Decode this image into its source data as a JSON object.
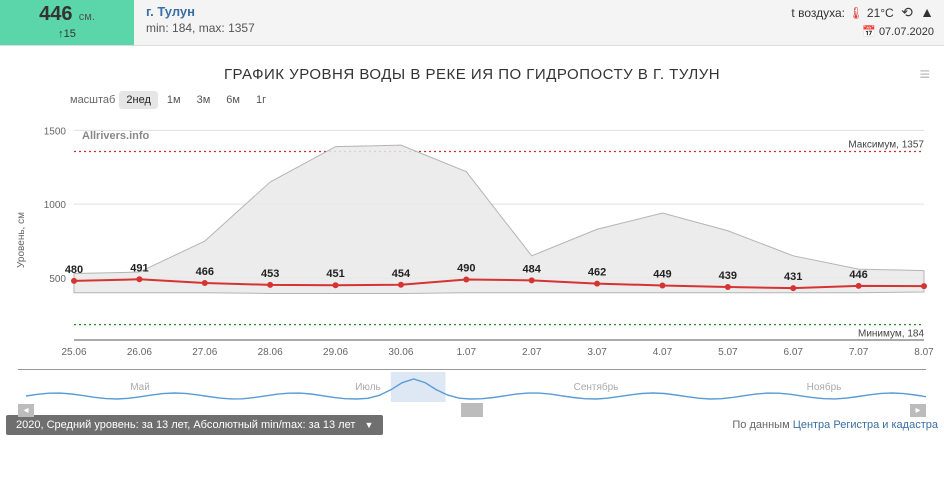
{
  "header": {
    "level_value": "446",
    "level_unit": "см.",
    "level_delta": "↑15",
    "city": "г. Тулун",
    "min_label": "min:",
    "min_value": "184,",
    "max_label": "max:",
    "max_value": "1357",
    "temp_label": "t воздуха:",
    "temp_value": "21°C",
    "date": "07.07.2020"
  },
  "chart": {
    "title": "ГРАФИК УРОВНЯ ВОДЫ В РЕКЕ ИЯ ПО ГИДРОПОСТУ В Г. ТУЛУН",
    "scale_label": "масштаб",
    "scale_options": [
      "2нед",
      "1м",
      "3м",
      "6м",
      "1г"
    ],
    "scale_active": 0,
    "watermark": "Allrivers.info",
    "y_label": "Уровень, см",
    "y_ticks": [
      500,
      1000,
      1500
    ],
    "ylim": [
      100,
      1550
    ],
    "x_labels": [
      "25.06",
      "26.06",
      "27.06",
      "28.06",
      "29.06",
      "30.06",
      "1.07",
      "2.07",
      "3.07",
      "4.07",
      "5.07",
      "6.07",
      "7.07",
      "8.07"
    ],
    "max_line": {
      "label": "Максимум, 1357",
      "value": 1357,
      "color": "#c03030"
    },
    "min_line": {
      "label": "Минимум, 184",
      "value": 184,
      "color": "#2a8a2a"
    },
    "envelope_top": [
      530,
      540,
      750,
      1150,
      1390,
      1400,
      1220,
      650,
      830,
      940,
      820,
      650,
      560,
      550
    ],
    "envelope_bottom": [
      400,
      400,
      400,
      395,
      395,
      395,
      400,
      400,
      400,
      400,
      400,
      400,
      400,
      405
    ],
    "main_series": {
      "color": "#d63333",
      "values": [
        480,
        491,
        466,
        453,
        451,
        454,
        490,
        484,
        462,
        449,
        439,
        431,
        446,
        445
      ],
      "show_labels": [
        true,
        true,
        true,
        true,
        true,
        true,
        true,
        true,
        true,
        true,
        true,
        true,
        true,
        false
      ]
    },
    "navigator_months": [
      "Май",
      "Июль",
      "Сентябрь",
      "Ноябрь"
    ],
    "navigator_selection": [
      0.4,
      0.46
    ]
  },
  "footer": {
    "legend": "2020, Средний уровень: за 13 лет, Абсолютный min/max: за 13 лет",
    "credit_prefix": "По данным ",
    "credit_link": "Центра Регистра и кадастра"
  },
  "colors": {
    "bg": "#ffffff",
    "header_bg": "#f4f4f4",
    "level_bg": "#5bd6ab",
    "grid": "#e0e0e0",
    "text": "#333333",
    "envelope_fill": "#e9e9e9",
    "envelope_stroke": "#a8a8a8",
    "nav_line": "#5a9bd5"
  }
}
